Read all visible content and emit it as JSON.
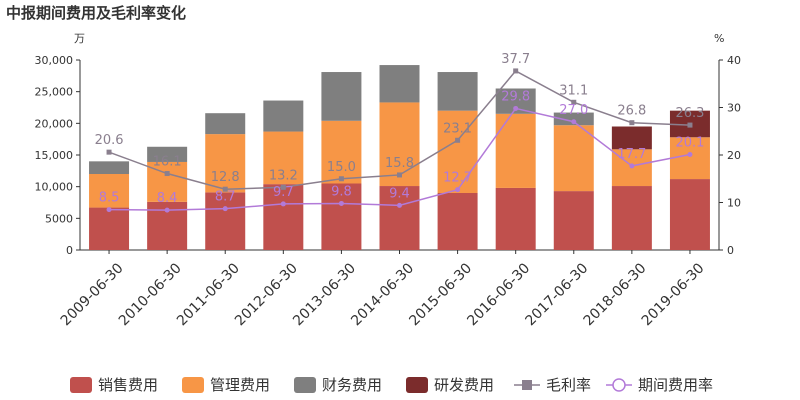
{
  "chart_data": {
    "type": "bar",
    "title": "中报期间费用及毛利率变化",
    "left_unit": "万",
    "right_unit": "%",
    "categories": [
      "2009-06-30",
      "2010-06-30",
      "2011-06-30",
      "2012-06-30",
      "2013-06-30",
      "2014-06-30",
      "2015-06-30",
      "2016-06-30",
      "2017-06-30",
      "2018-06-30",
      "2019-06-30"
    ],
    "ylim_left": [
      0,
      30000
    ],
    "ylim_right": [
      0,
      40
    ],
    "yticks_left": [
      "0",
      "5000",
      "10,000",
      "15,000",
      "20,000",
      "25,000",
      "30,000"
    ],
    "yticks_right": [
      "0",
      "10",
      "20",
      "30",
      "40"
    ],
    "stacked_series": [
      {
        "name": "销售费用",
        "color": "#c0504d",
        "values": [
          6700,
          7600,
          9100,
          10400,
          10500,
          10100,
          9000,
          9800,
          9300,
          10100,
          11200
        ]
      },
      {
        "name": "管理费用",
        "color": "#f79646",
        "values": [
          5300,
          6300,
          9200,
          8300,
          9900,
          13200,
          13000,
          11700,
          10400,
          5800,
          6600
        ]
      },
      {
        "name": "财务费用",
        "color": "#7f7f7f",
        "values": [
          2000,
          2400,
          3300,
          4900,
          7700,
          5900,
          6100,
          4000,
          2000,
          0,
          0
        ]
      },
      {
        "name": "研发费用",
        "color": "#7b2c2c",
        "values": [
          0,
          0,
          0,
          0,
          0,
          0,
          0,
          0,
          0,
          3600,
          4200
        ]
      }
    ],
    "line_series": [
      {
        "name": "毛利率",
        "color": "#8a7f8e",
        "marker": "square",
        "values": [
          20.6,
          16.1,
          12.8,
          13.2,
          15.0,
          15.8,
          23.1,
          37.7,
          31.1,
          26.8,
          26.3
        ],
        "labels": [
          "20.6",
          "16.1",
          "12.8",
          "13.2",
          "15.0",
          "15.8",
          "23.1",
          "37.7",
          "31.1",
          "26.8",
          "26.3"
        ]
      },
      {
        "name": "期间费用率",
        "color": "#b27ad8",
        "marker": "circle",
        "values": [
          8.5,
          8.4,
          8.7,
          9.7,
          9.8,
          9.4,
          12.7,
          29.8,
          27.0,
          17.7,
          20.1
        ],
        "labels": [
          "8.5",
          "8.4",
          "8.7",
          "9.7",
          "9.8",
          "9.4",
          "12.7",
          "29.8",
          "27.0",
          "17.7",
          "20.1"
        ]
      }
    ],
    "grid": false,
    "legend_position": "bottom"
  }
}
